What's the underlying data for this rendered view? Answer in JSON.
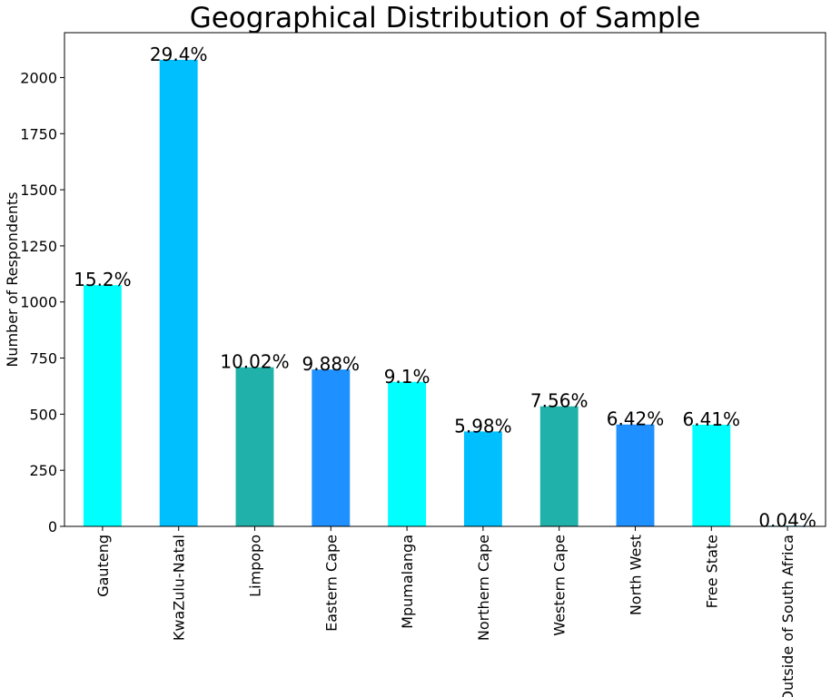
{
  "chart_data": {
    "type": "bar",
    "title": "Geographical Distribution of Sample",
    "xlabel": "",
    "ylabel": "Number of Respondents",
    "ylim": [
      0,
      2200
    ],
    "yticks": [
      0,
      250,
      500,
      750,
      1000,
      1250,
      1500,
      1750,
      2000
    ],
    "grid": false,
    "categories": [
      "Gauteng",
      "KwaZulu-Natal",
      "Limpopo",
      "Eastern Cape",
      "Mpumalanga",
      "Northern Cape",
      "Western Cape",
      "North West",
      "Free State",
      "Outside of South Africa"
    ],
    "values": [
      1075,
      2079,
      709,
      699,
      644,
      423,
      535,
      454,
      453,
      3
    ],
    "labels": [
      "15.2%",
      "29.4%",
      "10.02%",
      "9.88%",
      "9.1%",
      "5.98%",
      "7.56%",
      "6.42%",
      "6.41%",
      "0.04%"
    ],
    "colors": [
      "#00ffff",
      "#00bfff",
      "#20b2aa",
      "#1e90ff",
      "#00ffff",
      "#00bfff",
      "#20b2aa",
      "#1e90ff",
      "#00ffff",
      "#00bfff"
    ]
  }
}
